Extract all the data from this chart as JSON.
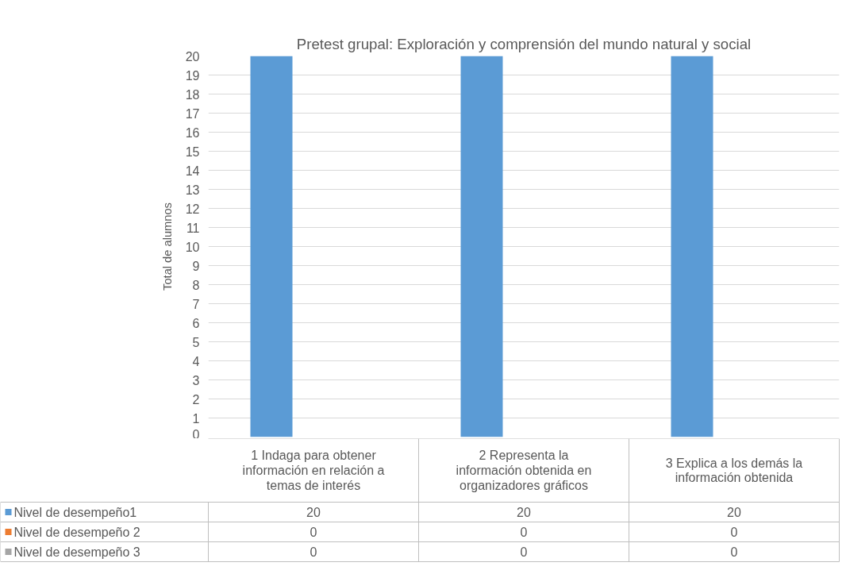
{
  "chart_data": {
    "type": "bar",
    "title": "Pretest grupal: Exploración y comprensión del mundo natural y social",
    "ylabel": "Total de alumnos",
    "categories": [
      "1 Indaga para obtener información en relación a temas de interés",
      "2 Representa la información obtenida en organizadores gráficos",
      "3 Explica a los demás la información obtenida"
    ],
    "series": [
      {
        "name": "Nivel de desempeño1",
        "color": "#5b9bd5",
        "values": [
          20,
          20,
          20
        ]
      },
      {
        "name": "Nivel de desempeño 2",
        "color": "#ed7d31",
        "values": [
          0,
          0,
          0
        ]
      },
      {
        "name": "Nivel de desempeño 3",
        "color": "#a5a5a5",
        "values": [
          0,
          0,
          0
        ]
      }
    ],
    "ylim": [
      0,
      20
    ],
    "yticks": [
      0,
      1,
      2,
      3,
      4,
      5,
      6,
      7,
      8,
      9,
      10,
      11,
      12,
      13,
      14,
      15,
      16,
      17,
      18,
      19,
      20
    ],
    "grid": "y",
    "data_labels": true
  }
}
